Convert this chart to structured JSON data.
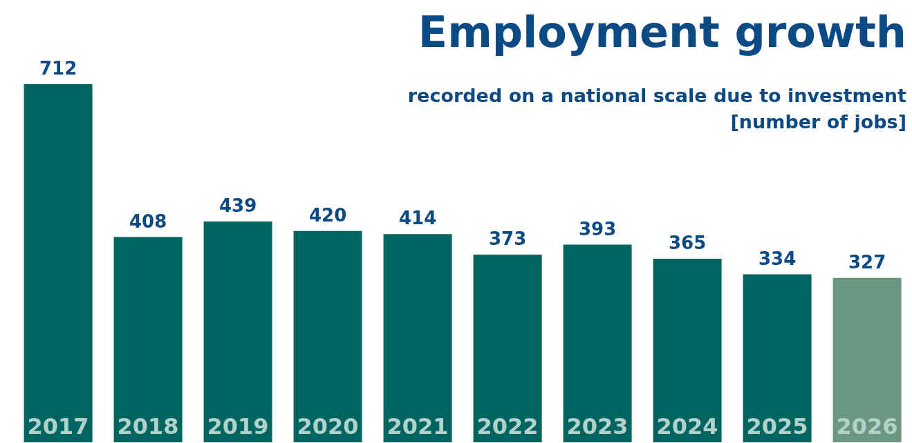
{
  "chart_data": {
    "type": "bar",
    "title": "Employment growth",
    "subtitle": "recorded on a national scale due to investment",
    "ylabel": "[number of jobs]",
    "categories": [
      "2017",
      "2018",
      "2019",
      "2020",
      "2021",
      "2022",
      "2023",
      "2024",
      "2025",
      "2026"
    ],
    "values": [
      712,
      408,
      439,
      420,
      414,
      373,
      393,
      365,
      334,
      327
    ],
    "colors": [
      "#006461",
      "#006461",
      "#006461",
      "#006461",
      "#006461",
      "#006461",
      "#006461",
      "#006461",
      "#006461",
      "#6a9682"
    ],
    "data_labels": true
  }
}
